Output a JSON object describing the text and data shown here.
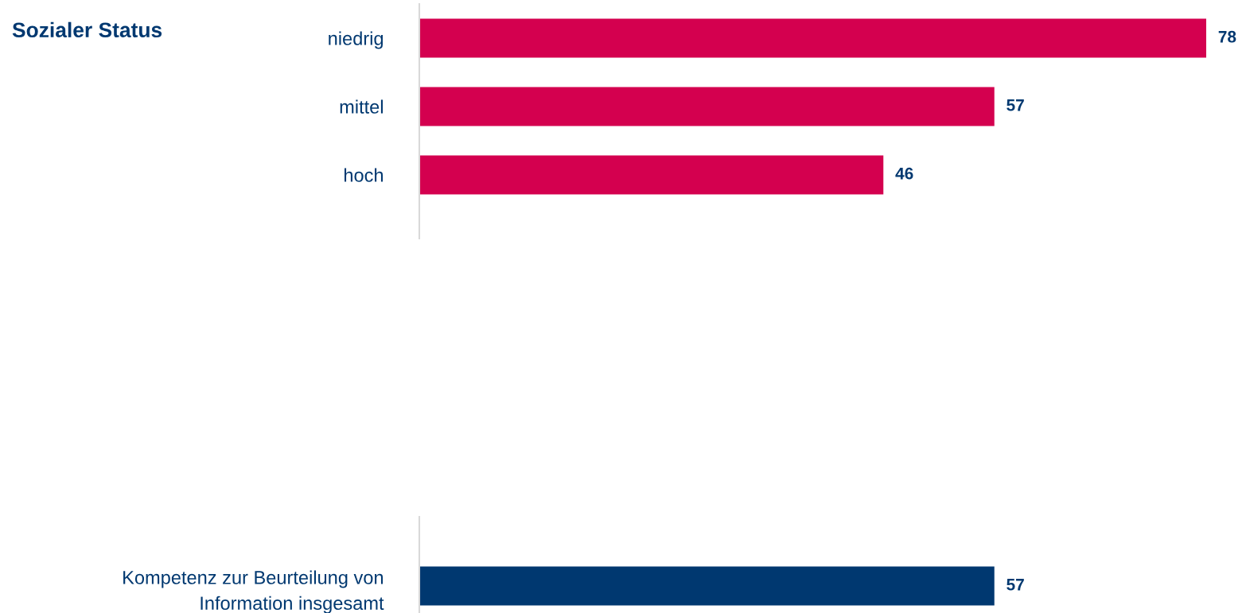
{
  "chart_data": [
    {
      "type": "bar",
      "orientation": "horizontal",
      "ylabel": "Sozialer Status",
      "categories": [
        "niedrig",
        "mittel",
        "hoch"
      ],
      "data_labels": true,
      "series": [
        {
          "color": "#d4004f",
          "values": [
            78,
            57,
            46
          ]
        }
      ]
    },
    {
      "type": "bar",
      "orientation": "horizontal",
      "categories": [
        "Kompetenz zur Beurteilung von\nInformation insgesamt"
      ],
      "data_labels": true,
      "series": [
        {
          "color": "#003870",
          "values": [
            57
          ]
        }
      ]
    }
  ]
}
